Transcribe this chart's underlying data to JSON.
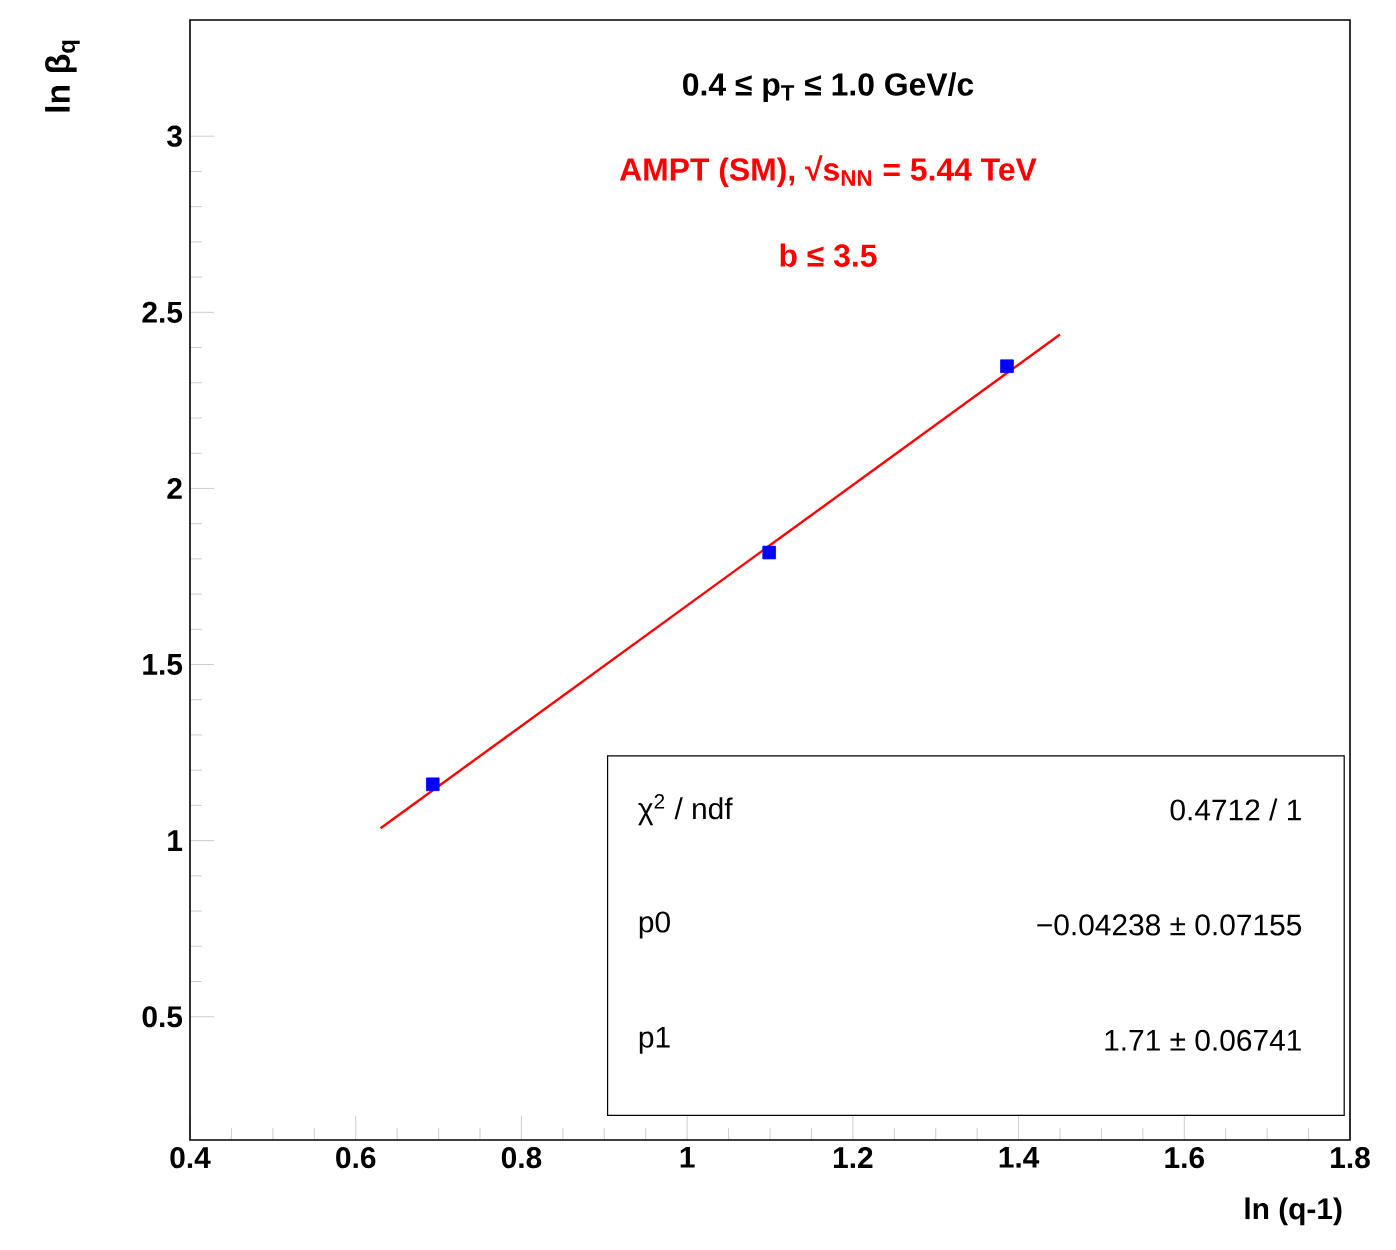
{
  "chart_data": {
    "type": "scatter",
    "title": "0.4 ≤ p$_{T}$ ≤ 1.0 GeV/c",
    "subtitle": "AMPT (SM), √s$_{NN}$ = 5.44 TeV",
    "xlabel": "ln (q-1)",
    "ylabel": "ln β$_{q}$",
    "annotations": [
      "b ≤ 3.5",
      "χ$^{2}$ / ndf",
      "0.4712 / 1",
      "p0",
      "−0.04238 ± 0.07155",
      "p1",
      "1.71 ± 0.06741"
    ],
    "series": [
      {
        "color": "#0000ff",
        "marker": "square",
        "x": [
          0.693,
          1.099,
          1.386
        ],
        "values": [
          1.16,
          1.818,
          2.347
        ]
      },
      {
        "type": "line",
        "color": "#ff0000",
        "marker": "none",
        "line_style": "solid",
        "x": [
          0.63,
          1.45
        ],
        "values": [
          1.035,
          2.437
        ]
      }
    ],
    "xlim": [
      0.4,
      1.8
    ],
    "ylim": [
      0.15,
      3.33
    ],
    "xticks": [
      0.4,
      0.6,
      0.8,
      1,
      1.2,
      1.4,
      1.6,
      1.8
    ],
    "yticks": [
      0.5,
      1,
      1.5,
      2,
      2.5,
      3
    ]
  }
}
